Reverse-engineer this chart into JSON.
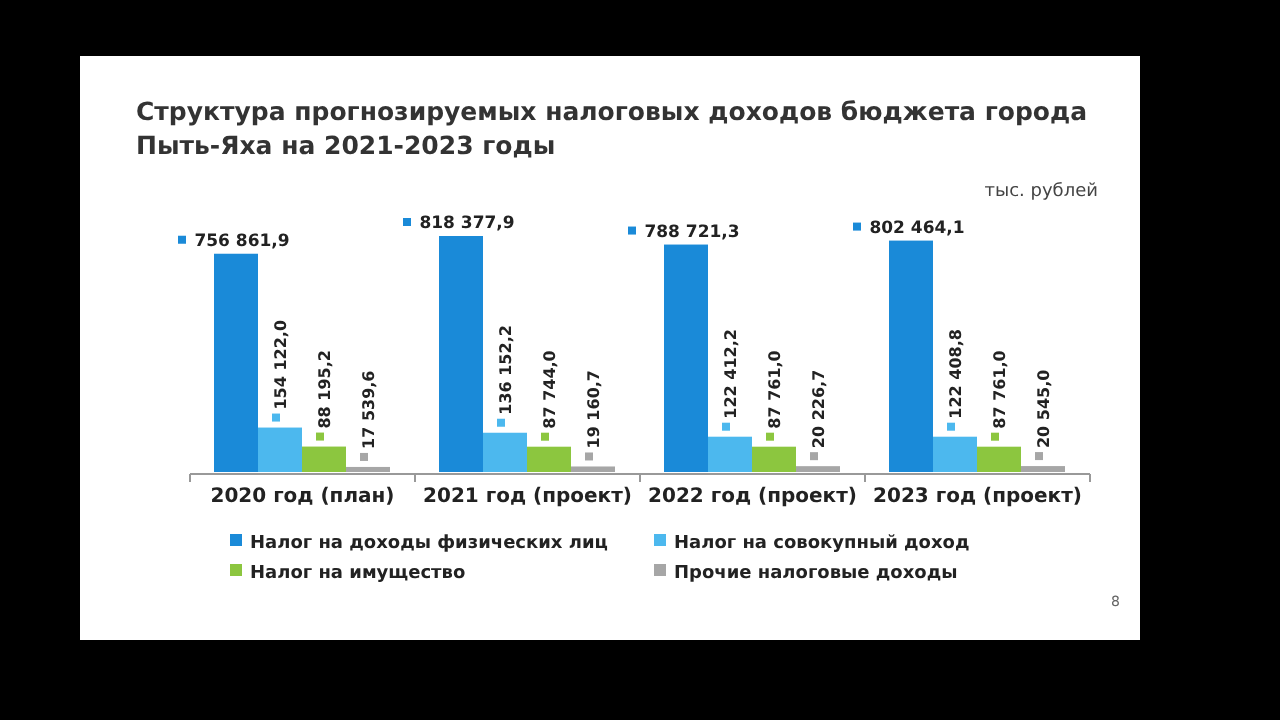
{
  "chart_data": {
    "type": "bar",
    "title": "Структура прогнозируемых налоговых доходов бюджета города Пыть-Яха на 2021-2023 годы",
    "categories": [
      "2020 год (план)",
      "2021 год (проект)",
      "2022 год (проект)",
      "2023 год (проект)"
    ],
    "series": [
      {
        "name": "Налог на доходы физических лиц",
        "color": "#1a8ad8",
        "values": [
          756861.9,
          818377.9,
          788721.3,
          802464.1
        ],
        "value_labels": [
          "756 861,9",
          "818 377,9",
          "788 721,3",
          "802 464,1"
        ]
      },
      {
        "name": "Налог на совокупный доход",
        "color": "#4cb8ee",
        "values": [
          154122.0,
          136152.2,
          122412.2,
          122408.8
        ],
        "value_labels": [
          "154 122,0",
          "136 152,2",
          "122 412,2",
          "122 408,8"
        ]
      },
      {
        "name": "Налог на имущество",
        "color": "#8cc63f",
        "values": [
          88195.2,
          87744.0,
          87761.0,
          87761.0
        ],
        "value_labels": [
          "88 195,2",
          "87 744,0",
          "87 761,0",
          "87 761,0"
        ]
      },
      {
        "name": "Прочие налоговые доходы",
        "color": "#a6a6a6",
        "values": [
          17539.6,
          19160.7,
          20226.7,
          20545.0
        ],
        "value_labels": [
          "17 539,6",
          "19 160,7",
          "20 226,7",
          "20 545,0"
        ]
      }
    ],
    "annotations": [
      "тыс. рублей",
      "8"
    ],
    "legend": "bottom"
  }
}
